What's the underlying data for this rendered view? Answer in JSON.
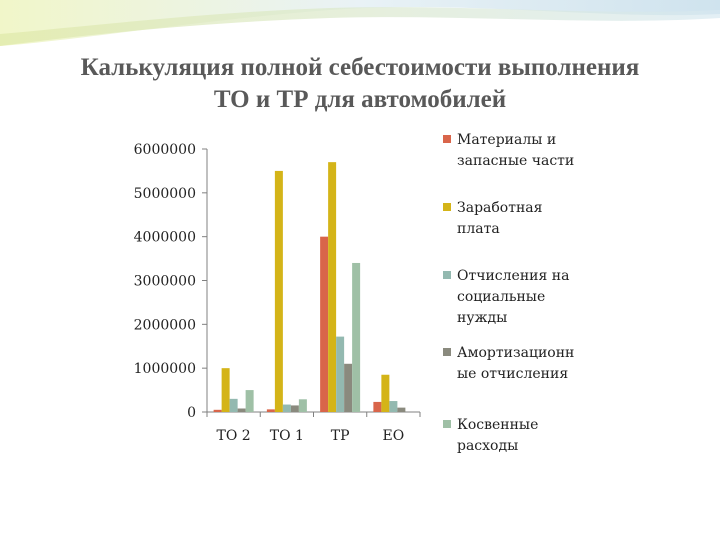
{
  "slide": {
    "title_line1": "Калькуляция полной себестоимости выполнения",
    "title_line2": "ТО и ТР для автомобилей"
  },
  "colors": {
    "materials": "#d9654a",
    "wages": "#d4b418",
    "social": "#93b9b0",
    "depreciation": "#8a8a7e",
    "indirect": "#9fc0a6",
    "axis": "#808080"
  },
  "chart_data": {
    "type": "bar",
    "categories": [
      "ТО 2",
      "ТО 1",
      "ТР",
      "ЕО"
    ],
    "ylim": [
      0,
      6000000
    ],
    "yticks": [
      0,
      1000000,
      2000000,
      3000000,
      4000000,
      5000000,
      6000000
    ],
    "ytick_labels": [
      "0",
      "1000000",
      "2000000",
      "3000000",
      "4000000",
      "5000000",
      "6000000"
    ],
    "legend_position": "right",
    "grid": false,
    "series": [
      {
        "name": "Материалы и запасные части",
        "values": [
          50000,
          60000,
          4000000,
          230000
        ]
      },
      {
        "name": "Заработная плата",
        "values": [
          1000000,
          5500000,
          5700000,
          850000
        ]
      },
      {
        "name": "Отчисления на социальные нужды",
        "values": [
          300000,
          170000,
          1720000,
          250000
        ]
      },
      {
        "name": "Амортизационные отчисления",
        "values": [
          80000,
          150000,
          1100000,
          100000
        ]
      },
      {
        "name": "Косвенные расходы",
        "values": [
          500000,
          290000,
          3400000,
          0
        ]
      }
    ]
  },
  "legend": [
    {
      "lines": [
        "Материалы и",
        "запасные части"
      ]
    },
    {
      "lines": [
        "Заработная",
        "плата"
      ]
    },
    {
      "lines": [
        "Отчисления на",
        "социальные",
        "нужды"
      ]
    },
    {
      "lines": [
        "Амортизационн",
        "ые отчисления"
      ]
    },
    {
      "lines": [
        "Косвенные",
        "расходы"
      ]
    }
  ]
}
